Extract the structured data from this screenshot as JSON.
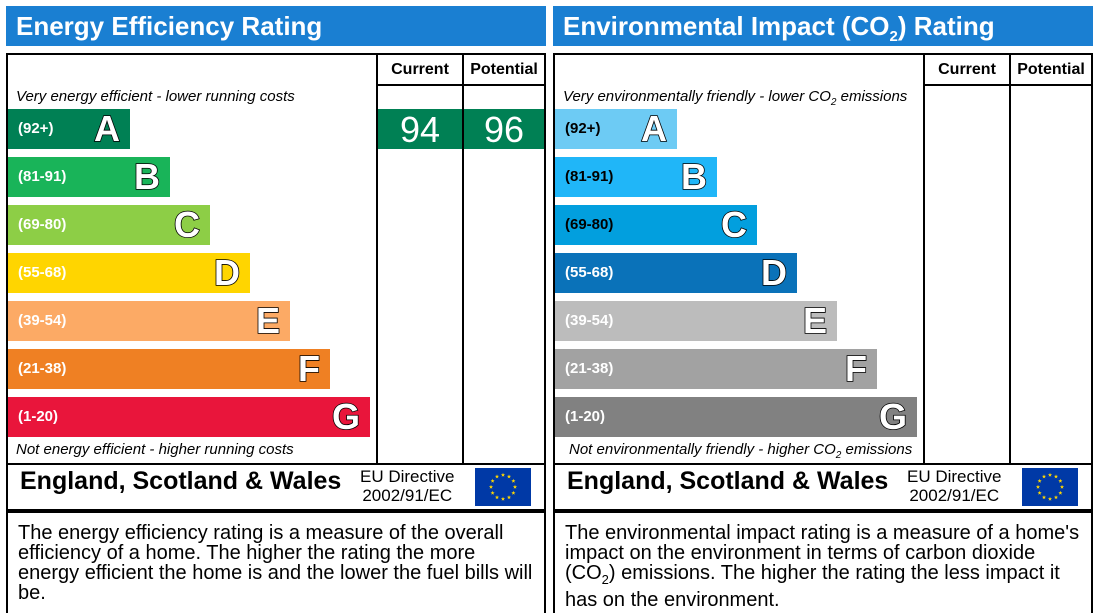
{
  "chart_data": [
    {
      "type": "bar",
      "title": "Energy Efficiency Rating",
      "columns": [
        "Current",
        "Potential"
      ],
      "top_note": "Very energy efficient - lower running costs",
      "bottom_note": "Not energy efficient - higher running costs",
      "bands": [
        {
          "letter": "A",
          "range": "(92+)",
          "color": "#008054"
        },
        {
          "letter": "B",
          "range": "(81-91)",
          "color": "#19b459"
        },
        {
          "letter": "C",
          "range": "(69-80)",
          "color": "#8dce46"
        },
        {
          "letter": "D",
          "range": "(55-68)",
          "color": "#ffd500"
        },
        {
          "letter": "E",
          "range": "(39-54)",
          "color": "#fcaa65"
        },
        {
          "letter": "F",
          "range": "(21-38)",
          "color": "#ef8023"
        },
        {
          "letter": "G",
          "range": "(1-20)",
          "color": "#e9153b"
        }
      ],
      "current": {
        "value": "94",
        "band": "A"
      },
      "potential": {
        "value": "96",
        "band": "A"
      },
      "footer": {
        "country": "England, Scotland & Wales",
        "directive_line1": "EU Directive",
        "directive_line2": "2002/91/EC"
      },
      "description": "The energy efficiency rating is a measure of the overall efficiency of a home. The higher the rating the more energy efficient the home is and the lower the fuel bills will be."
    },
    {
      "type": "bar",
      "title_main": "Environmental Impact (CO",
      "title_sub": "2",
      "title_end": ") Rating",
      "columns": [
        "Current",
        "Potential"
      ],
      "top_note_main": "Very environmentally friendly - lower CO",
      "top_note_sub": "2",
      "top_note_end": " emissions",
      "bottom_note_main": "Not environmentally friendly - higher CO",
      "bottom_note_sub": "2",
      "bottom_note_end": " emissions",
      "bands": [
        {
          "letter": "A",
          "range": "(92+)",
          "color": "#6dcbf4"
        },
        {
          "letter": "B",
          "range": "(81-91)",
          "color": "#20b6f8"
        },
        {
          "letter": "C",
          "range": "(69-80)",
          "color": "#029fde"
        },
        {
          "letter": "D",
          "range": "(55-68)",
          "color": "#0a72b9"
        },
        {
          "letter": "E",
          "range": "(39-54)",
          "color": "#bcbcbc"
        },
        {
          "letter": "F",
          "range": "(21-38)",
          "color": "#a2a2a2"
        },
        {
          "letter": "G",
          "range": "(1-20)",
          "color": "#818181"
        }
      ],
      "footer": {
        "country": "England, Scotland & Wales",
        "directive_line1": "EU Directive",
        "directive_line2": "2002/91/EC"
      },
      "description_part1": "The environmental impact rating is a measure of a home's impact on the environment in terms of carbon dioxide (CO",
      "description_sub": "2",
      "description_part2": ") emissions. The higher the rating the less impact it has on the environment."
    }
  ]
}
